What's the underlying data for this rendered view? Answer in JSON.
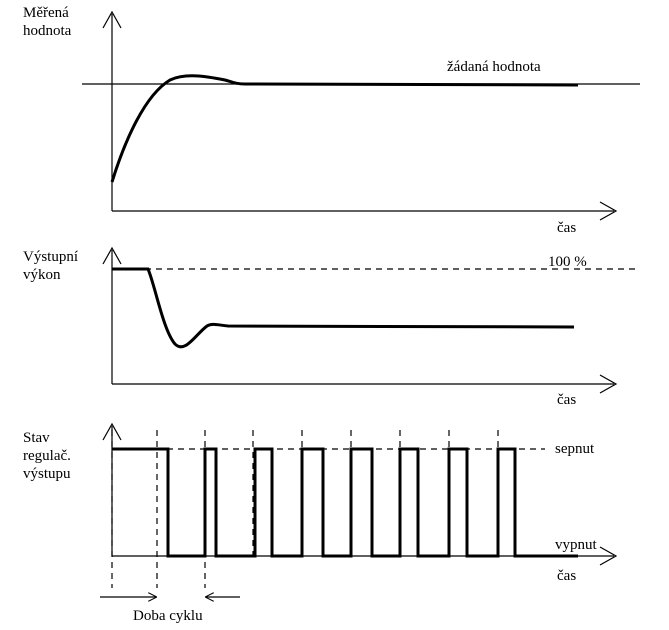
{
  "panel1": {
    "ylabel": "Měřená\nhodnota",
    "xlabel": "čas",
    "setpoint_label": "žádaná hodnota"
  },
  "panel2": {
    "ylabel": "Výstupní\nvýkon",
    "xlabel": "čas",
    "max_label": "100 %"
  },
  "panel3": {
    "ylabel": "Stav\nregulač.\nvýstupu",
    "xlabel": "čas",
    "on_label": "sepnut",
    "off_label": "vypnut",
    "cycle_label": "Doba cyklu"
  }
}
